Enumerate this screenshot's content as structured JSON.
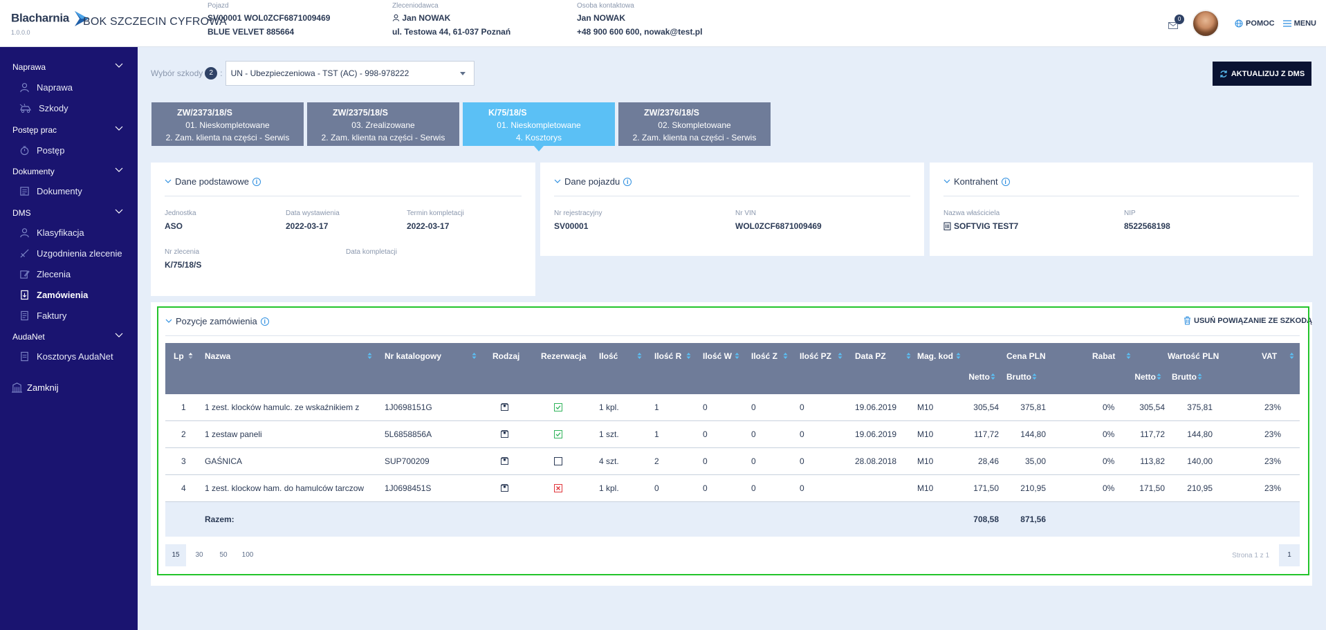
{
  "app": {
    "logo_text": "Blacharnia",
    "version": "1.0.0.0",
    "company": "BOK SZCZECIN CYFROWA"
  },
  "header": {
    "vehicle": {
      "label": "Pojazd",
      "line1": "SV00001 WOL0ZCF6871009469",
      "line2": "BLUE VELVET 885664"
    },
    "client": {
      "label": "Zleceniodawca",
      "line1": "Jan NOWAK",
      "line2": "ul. Testowa 44, 61-037 Poznań"
    },
    "contact": {
      "label": "Osoba kontaktowa",
      "line1": "Jan NOWAK",
      "line2": "+48 900 600 600, nowak@test.pl"
    },
    "mail_count": "0",
    "help_label": "POMOC",
    "menu_label": "MENU"
  },
  "sidebar": {
    "sections": [
      {
        "label": "Naprawa",
        "items": [
          {
            "label": "Naprawa",
            "icon": "person-icon"
          },
          {
            "label": "Szkody",
            "icon": "car-damage-icon"
          }
        ]
      },
      {
        "label": "Postęp prac",
        "items": [
          {
            "label": "Postęp",
            "icon": "stopwatch-icon"
          }
        ]
      },
      {
        "label": "Dokumenty",
        "items": [
          {
            "label": "Dokumenty",
            "icon": "documents-icon"
          }
        ]
      },
      {
        "label": "DMS",
        "items": [
          {
            "label": "Klasyfikacja",
            "icon": "person-icon"
          },
          {
            "label": "Uzgodnienia zlecenie",
            "icon": "tools-icon"
          },
          {
            "label": "Zlecenia",
            "icon": "edit-icon"
          },
          {
            "label": "Zamówienia",
            "icon": "order-icon"
          },
          {
            "label": "Faktury",
            "icon": "invoice-icon"
          }
        ]
      },
      {
        "label": "AudaNet",
        "items": [
          {
            "label": "Kosztorys AudaNet",
            "icon": "document-icon"
          }
        ]
      }
    ],
    "close_label": "Zamknij",
    "active_item": "Zamówienia"
  },
  "claim_select": {
    "label": "Wybór szkody",
    "count": "2",
    "value": "UN - Ubezpieczeniowa - TST (AC) - 998-978222"
  },
  "update_button": "AKTUALIZUJ Z DMS",
  "tabs": [
    {
      "code": "ZW/2373/18/S",
      "status": "01. Nieskompletowane",
      "type": "2. Zam. klienta na części - Serwis",
      "active": false
    },
    {
      "code": "ZW/2375/18/S",
      "status": "03. Zrealizowane",
      "type": "2. Zam. klienta na części - Serwis",
      "active": false
    },
    {
      "code": "K/75/18/S",
      "status": "01. Nieskompletowane",
      "type": "4. Kosztorys",
      "active": true
    },
    {
      "code": "ZW/2376/18/S",
      "status": "02. Skompletowane",
      "type": "2. Zam. klienta na części - Serwis",
      "active": false
    }
  ],
  "basic": {
    "title": "Dane podstawowe",
    "unit_label": "Jednostka",
    "unit": "ASO",
    "issue_label": "Data wystawienia",
    "issue": "2022-03-17",
    "deadline_label": "Termin kompletacji",
    "deadline": "2022-03-17",
    "order_no_label": "Nr zlecenia",
    "order_no": "K/75/18/S",
    "completion_label": "Data kompletacji",
    "completion": ""
  },
  "vehicle_data": {
    "title": "Dane pojazdu",
    "reg_label": "Nr rejestracyjny",
    "reg": "SV00001",
    "vin_label": "Nr VIN",
    "vin": "WOL0ZCF6871009469"
  },
  "contractor": {
    "title": "Kontrahent",
    "owner_label": "Nazwa właściciela",
    "owner": "SOFTVIG TEST7",
    "nip_label": "NIP",
    "nip": "8522568198"
  },
  "positions": {
    "title": "Pozycje zamówienia",
    "unlink_label": "USUŃ POWIĄZANIE ZE SZKODĄ",
    "columns": {
      "lp": "Lp",
      "name": "Nazwa",
      "catalog": "Nr katalogowy",
      "kind": "Rodzaj",
      "reservation": "Rezerwacja",
      "qty": "Ilość",
      "qty_r": "Ilość R",
      "qty_w": "Ilość W",
      "qty_z": "Ilość Z",
      "qty_pz": "Ilość PZ",
      "date_pz": "Data PZ",
      "mag": "Mag. kod",
      "price": "Cena PLN",
      "discount": "Rabat",
      "value": "Wartość PLN",
      "vat": "VAT",
      "net": "Netto",
      "gross": "Brutto"
    },
    "rows": [
      {
        "lp": "1",
        "name": "1 zest. klocków hamulc. ze wskaźnikiem z",
        "catalog": "1J0698151G",
        "reservation": "checked",
        "qty": "1 kpl.",
        "qty_r": "1",
        "qty_w": "0",
        "qty_z": "0",
        "qty_pz": "0",
        "date_pz": "19.06.2019",
        "mag": "M10",
        "price_net": "305,54",
        "price_gross": "375,81",
        "discount": "0%",
        "value_net": "305,54",
        "value_gross": "375,81",
        "vat": "23%"
      },
      {
        "lp": "2",
        "name": "1 zestaw paneli",
        "catalog": "5L6858856A",
        "reservation": "checked",
        "qty": "1 szt.",
        "qty_r": "1",
        "qty_w": "0",
        "qty_z": "0",
        "qty_pz": "0",
        "date_pz": "19.06.2019",
        "mag": "M10",
        "price_net": "117,72",
        "price_gross": "144,80",
        "discount": "0%",
        "value_net": "117,72",
        "value_gross": "144,80",
        "vat": "23%"
      },
      {
        "lp": "3",
        "name": "GAŚNICA",
        "catalog": "SUP700209",
        "reservation": "empty",
        "qty": "4 szt.",
        "qty_r": "2",
        "qty_w": "0",
        "qty_z": "0",
        "qty_pz": "0",
        "date_pz": "28.08.2018",
        "mag": "M10",
        "price_net": "28,46",
        "price_gross": "35,00",
        "discount": "0%",
        "value_net": "113,82",
        "value_gross": "140,00",
        "vat": "23%"
      },
      {
        "lp": "4",
        "name": "1 zest. klockow ham. do hamulców tarczow",
        "catalog": "1J0698451S",
        "reservation": "cancelled",
        "qty": "1 kpl.",
        "qty_r": "0",
        "qty_w": "0",
        "qty_z": "0",
        "qty_pz": "0",
        "date_pz": "",
        "mag": "M10",
        "price_net": "171,50",
        "price_gross": "210,95",
        "discount": "0%",
        "value_net": "171,50",
        "value_gross": "210,95",
        "vat": "23%"
      }
    ],
    "total_label": "Razem:",
    "total_net": "708,58",
    "total_gross": "871,56",
    "page_sizes": [
      "15",
      "30",
      "50",
      "100"
    ],
    "page_info": "Strona 1 z 1",
    "current_page": "1"
  },
  "colors": {
    "sidebar": "#1a1470",
    "header_row": "#6f7c99",
    "active_tab": "#5bc0f5",
    "highlight": "#22c42a",
    "ok": "#2fb35a",
    "error": "#e0343a"
  }
}
